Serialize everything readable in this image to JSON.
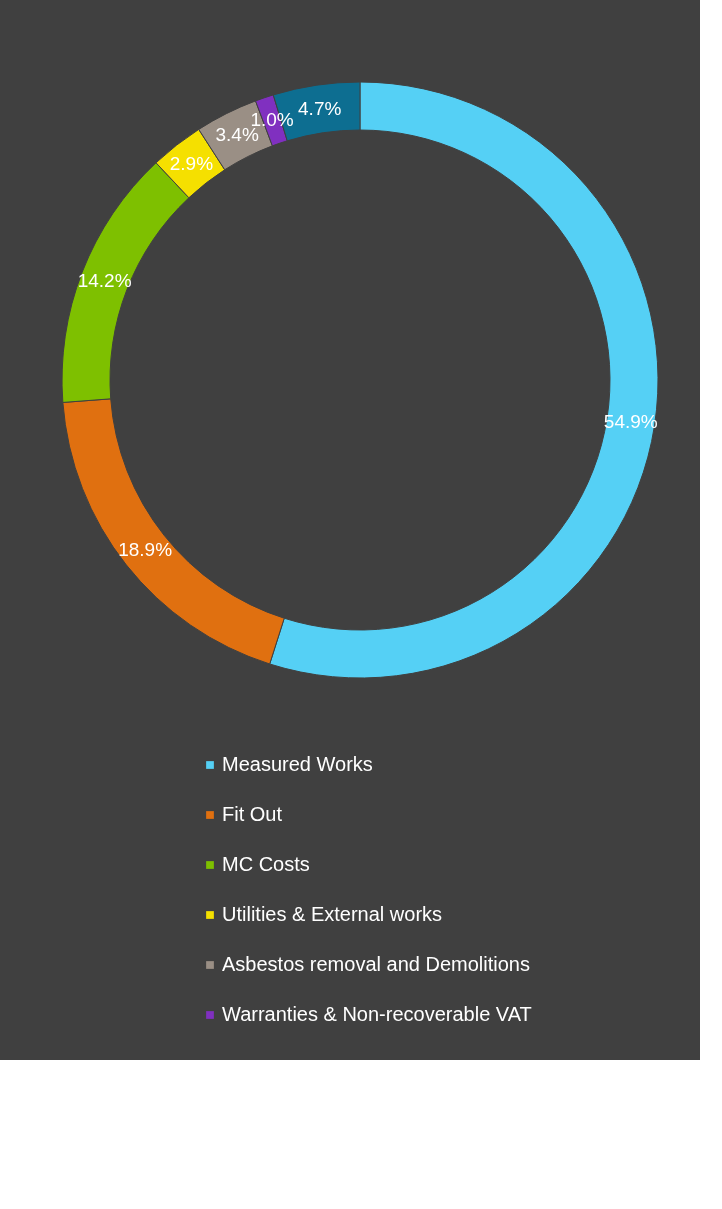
{
  "chart_data": {
    "type": "donut",
    "categories": [
      "Measured Works",
      "Fit Out",
      "MC Costs",
      "Utilities & External works",
      "Asbestos removal and Demolitions",
      "Warranties & Non-recoverable VAT",
      null
    ],
    "values": [
      54.9,
      18.9,
      14.2,
      2.9,
      3.4,
      1.0,
      4.7
    ],
    "value_labels": [
      "54.9%",
      "18.9%",
      "14.2%",
      "2.9%",
      "3.4%",
      "1.0%",
      "4.7%"
    ],
    "colors": [
      "#55d0f5",
      "#e07010",
      "#7ec000",
      "#f5e000",
      "#9a8f85",
      "#8030c0",
      "#0d6e91"
    ],
    "legend": "bottom"
  }
}
